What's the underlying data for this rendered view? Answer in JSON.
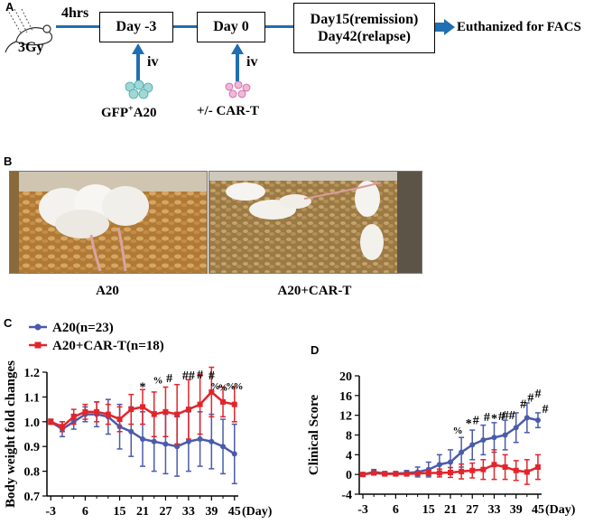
{
  "panel_labels": {
    "a": "A",
    "b": "B",
    "c": "C",
    "d": "D"
  },
  "schematic": {
    "dose": "3Gy",
    "interval": "4hrs",
    "step1": "Day -3",
    "step2": "Day 0",
    "step3_line1": "Day15(remission)",
    "step3_line2": "Day42(relapse)",
    "endpoint": "Euthanized for FACS",
    "route1": "iv",
    "route2": "iv",
    "inject1_prefix": "GFP",
    "inject1_sup": "+",
    "inject1_suffix": "A20",
    "inject2": "+/- CAR-T"
  },
  "photos": {
    "left_caption": "A20",
    "right_caption": "A20+CAR-T"
  },
  "colors": {
    "blue": "#4a5bab",
    "red": "#e2252b",
    "arrow": "#1f6fb2"
  },
  "chart_data": [
    {
      "type": "line",
      "ylabel": "Body weight fold changes",
      "xlabel": "(Day)",
      "x_ticks": [
        -3,
        6,
        15,
        21,
        27,
        33,
        39,
        45
      ],
      "x_tick_labels": [
        "-3",
        "6",
        "15",
        "21",
        "27",
        "33",
        "39",
        "45"
      ],
      "x_extra_minor": [
        0,
        3,
        9,
        12,
        18,
        24,
        30,
        36,
        42
      ],
      "xlim": [
        -4,
        46
      ],
      "ylim": [
        0.7,
        1.2
      ],
      "y_ticks": [
        0.7,
        0.8,
        0.9,
        1.0,
        1.1,
        1.2
      ],
      "y_tick_labels": [
        "0.7",
        "0.8",
        "0.9",
        "1.0",
        "1.1",
        "1.2"
      ],
      "x": [
        -3,
        0,
        3,
        6,
        9,
        12,
        15,
        18,
        21,
        24,
        27,
        30,
        33,
        36,
        39,
        42,
        45
      ],
      "series": [
        {
          "name": "A20(n=23)",
          "values": [
            1.0,
            0.97,
            1.0,
            1.03,
            1.03,
            1.02,
            0.98,
            0.96,
            0.93,
            0.92,
            0.91,
            0.9,
            0.92,
            0.93,
            0.92,
            0.9,
            0.87
          ],
          "errors": [
            0.01,
            0.03,
            0.03,
            0.03,
            0.05,
            0.07,
            0.09,
            0.1,
            0.11,
            0.12,
            0.12,
            0.12,
            0.12,
            0.11,
            0.11,
            0.11,
            0.12
          ]
        },
        {
          "name": "A20+CAR-T(n=18)",
          "values": [
            1.0,
            0.98,
            1.02,
            1.04,
            1.04,
            1.03,
            1.01,
            1.05,
            1.06,
            1.03,
            1.04,
            1.03,
            1.05,
            1.07,
            1.12,
            1.08,
            1.07
          ],
          "errors": [
            0.01,
            0.02,
            0.03,
            0.03,
            0.04,
            0.04,
            0.05,
            0.06,
            0.07,
            0.09,
            0.1,
            0.12,
            0.12,
            0.12,
            0.1,
            0.06,
            0.07
          ]
        }
      ],
      "annotations": [
        {
          "x": 21,
          "y": 1.125,
          "text": "*"
        },
        {
          "x": 25,
          "y": 1.155,
          "text": "%"
        },
        {
          "x": 28,
          "y": 1.16,
          "text": "#"
        },
        {
          "x": 33,
          "y": 1.17,
          "text": "##"
        },
        {
          "x": 36,
          "y": 1.175,
          "text": "#"
        },
        {
          "x": 39,
          "y": 1.17,
          "text": "#"
        },
        {
          "x": 40,
          "y": 1.13,
          "text": "%"
        },
        {
          "x": 42,
          "y": 1.125,
          "text": "%"
        },
        {
          "x": 44,
          "y": 1.13,
          "text": "%"
        },
        {
          "x": 46,
          "y": 1.13,
          "text": "%"
        }
      ],
      "legend_position": "top-left"
    },
    {
      "type": "line",
      "ylabel": "Clinical Score",
      "xlabel": "(Day)",
      "x_ticks": [
        -3,
        6,
        15,
        21,
        27,
        33,
        39,
        45
      ],
      "x_tick_labels": [
        "-3",
        "6",
        "15",
        "21",
        "27",
        "33",
        "39",
        "45"
      ],
      "x_extra_minor": [
        0,
        3,
        9,
        12,
        18,
        24,
        30,
        36,
        42
      ],
      "xlim": [
        -4,
        46
      ],
      "ylim": [
        -4,
        20
      ],
      "y_ticks": [
        -4,
        0,
        4,
        8,
        12,
        16,
        20
      ],
      "y_tick_labels": [
        "-4",
        "0",
        "4",
        "8",
        "12",
        "16",
        "20"
      ],
      "x": [
        -3,
        0,
        3,
        6,
        9,
        12,
        15,
        18,
        21,
        24,
        27,
        30,
        33,
        36,
        39,
        42,
        45
      ],
      "series": [
        {
          "name": "A20(n=23)",
          "values": [
            0,
            0.5,
            0.2,
            0.2,
            0.3,
            0.5,
            1.0,
            2.0,
            2.5,
            4.5,
            6.0,
            7.0,
            7.5,
            8.0,
            9.5,
            11.5,
            11.0
          ],
          "errors": [
            0.2,
            0.5,
            0.4,
            0.4,
            0.5,
            1.0,
            1.5,
            2.0,
            2.5,
            3.0,
            3.0,
            3.0,
            3.0,
            3.0,
            3.0,
            3.0,
            1.5
          ]
        },
        {
          "name": "A20+CAR-T(n=18)",
          "values": [
            0,
            0.3,
            0.1,
            0.1,
            0.1,
            0.2,
            0.3,
            0.3,
            0.4,
            0.6,
            0.8,
            1.0,
            2.0,
            1.5,
            0.8,
            0.5,
            1.5
          ],
          "errors": [
            0.2,
            0.3,
            0.2,
            0.2,
            0.3,
            0.3,
            0.5,
            0.8,
            1.0,
            1.5,
            1.5,
            2.0,
            3.0,
            2.5,
            2.0,
            2.5,
            2.5
          ]
        }
      ],
      "annotations": [
        {
          "x": 23,
          "y": 8.3,
          "text": "%"
        },
        {
          "x": 26,
          "y": 9.6,
          "text": "*"
        },
        {
          "x": 28,
          "y": 10.2,
          "text": "#"
        },
        {
          "x": 31,
          "y": 10.8,
          "text": "#"
        },
        {
          "x": 33,
          "y": 10.6,
          "text": "*"
        },
        {
          "x": 35,
          "y": 11.0,
          "text": "#"
        },
        {
          "x": 37,
          "y": 11.2,
          "text": "##"
        },
        {
          "x": 41,
          "y": 13.5,
          "text": "#"
        },
        {
          "x": 43,
          "y": 14.8,
          "text": "#"
        },
        {
          "x": 45,
          "y": 15.6,
          "text": "#"
        },
        {
          "x": 47,
          "y": 12.5,
          "text": "#"
        }
      ]
    }
  ]
}
